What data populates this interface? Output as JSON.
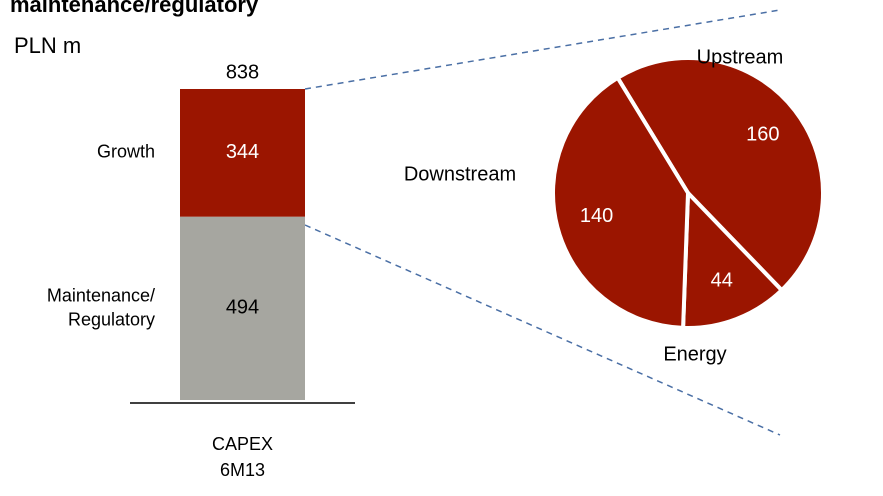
{
  "chart_data": [
    {
      "type": "bar",
      "stacked": true,
      "title": "maintenance/regulatory",
      "subtitle": "PLN m",
      "categories": [
        "CAPEX 6M13"
      ],
      "series": [
        {
          "name": "Maintenance/Regulatory",
          "color": "#a6a6a0",
          "values": [
            494
          ]
        },
        {
          "name": "Growth",
          "color": "#9b1500",
          "values": [
            344
          ]
        }
      ],
      "totals": [
        838
      ]
    },
    {
      "type": "pie",
      "categories": [
        "Upstream",
        "Energy",
        "Downstream"
      ],
      "values": [
        160,
        44,
        140
      ],
      "color": "#9b1500"
    }
  ]
}
